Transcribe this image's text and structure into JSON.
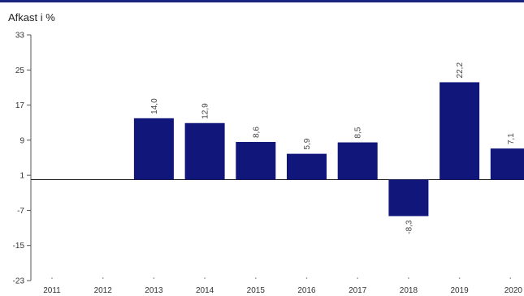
{
  "chart_data": {
    "type": "bar",
    "ylabel": "Afkast i %",
    "categories": [
      "2011",
      "2012",
      "2013",
      "2014",
      "2015",
      "2016",
      "2017",
      "2018",
      "2019",
      "2020"
    ],
    "values": [
      null,
      null,
      14.0,
      12.9,
      8.6,
      5.9,
      8.5,
      -8.3,
      22.2,
      7.1
    ],
    "value_labels": [
      "",
      "",
      "14,0",
      "12,9",
      "8,6",
      "5,9",
      "8,5",
      "-8,3",
      "22,2",
      "7,1"
    ],
    "yticks": [
      33,
      25,
      17,
      9,
      1,
      -7,
      -15,
      -23
    ],
    "ylim": [
      -23,
      33
    ],
    "baseline": 0,
    "bar_color": "#10167a",
    "accent_color": "#1a237e"
  }
}
